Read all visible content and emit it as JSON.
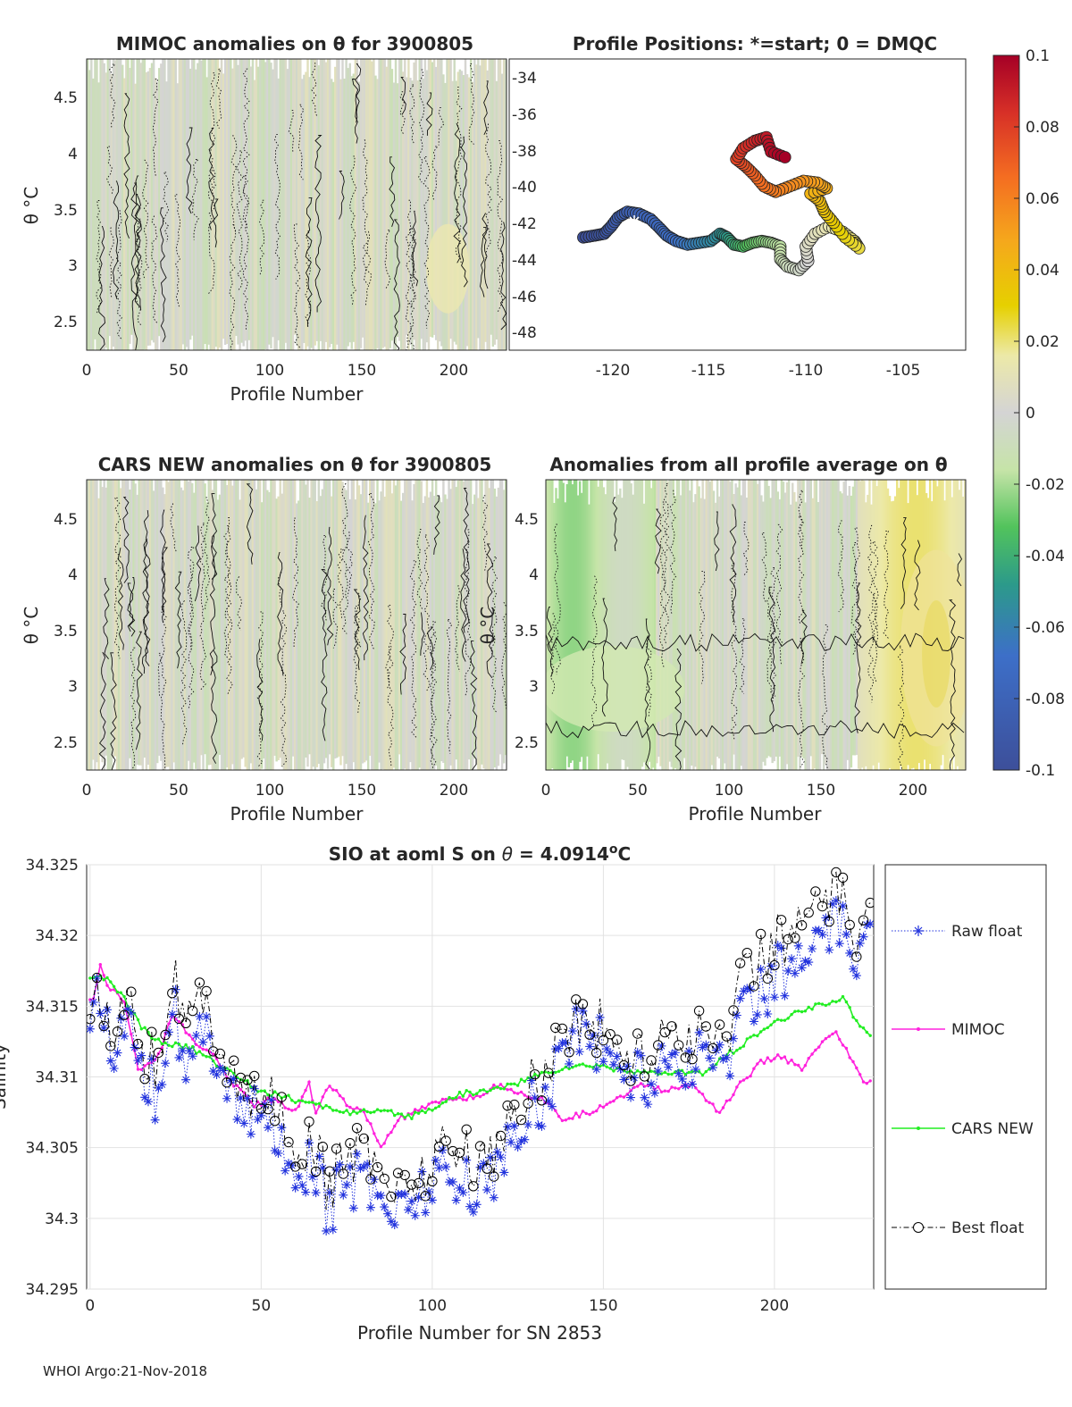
{
  "footer": "WHOI Argo:21-Nov-2018",
  "colors": {
    "raw": "#2233dd",
    "mimoc": "#ff22dd",
    "cars": "#22ee22",
    "best": "#000000",
    "fieldBase": "#d6d6d6"
  },
  "colorbar": {
    "ticks": [
      "0.1",
      "0.08",
      "0.06",
      "0.04",
      "0.02",
      "0",
      "-0.02",
      "-0.04",
      "-0.06",
      "-0.08",
      "-0.1"
    ],
    "values": [
      0.1,
      0.08,
      0.06,
      0.04,
      0.02,
      0,
      -0.02,
      -0.04,
      -0.06,
      -0.08,
      -0.1
    ],
    "range": [
      -0.1,
      0.1
    ]
  },
  "chart_data": [
    {
      "type": "heatmap",
      "title": "MIMOC anomalies on θ  for 3900805",
      "xlabel": "Profile Number",
      "ylabel": "θ °C",
      "xticks": [
        "0",
        "50",
        "100",
        "150",
        "200"
      ],
      "yticks": [
        "4.5",
        "4",
        "3.5",
        "3",
        "2.5"
      ],
      "xlim": [
        0,
        229
      ],
      "ylim": [
        2.25,
        4.85
      ]
    },
    {
      "type": "scatter",
      "title": "Profile Positions: *=start; 0 = DMQC",
      "xticks": [
        "-120",
        "-115",
        "-110",
        "-105"
      ],
      "yticks": [
        "-34",
        "-36",
        "-38",
        "-40",
        "-42",
        "-44",
        "-46",
        "-48"
      ],
      "xlim": [
        -122.3,
        -102.6
      ],
      "ylim": [
        -49,
        -33
      ],
      "start": [
        -118.4,
        -42.0
      ],
      "track": [
        [
          -119.1,
          -42.8
        ],
        [
          -118.6,
          -42.7
        ],
        [
          -118.2,
          -42.6
        ],
        [
          -117.9,
          -42.2
        ],
        [
          -117.6,
          -41.7
        ],
        [
          -117.2,
          -41.4
        ],
        [
          -116.7,
          -41.5
        ],
        [
          -116.2,
          -41.8
        ],
        [
          -115.8,
          -42.3
        ],
        [
          -115.5,
          -42.7
        ],
        [
          -115.1,
          -43.0
        ],
        [
          -114.6,
          -43.2
        ],
        [
          -114.1,
          -43.1
        ],
        [
          -113.6,
          -43.0
        ],
        [
          -113.2,
          -42.6
        ],
        [
          -112.9,
          -42.8
        ],
        [
          -112.6,
          -43.2
        ],
        [
          -112.2,
          -43.3
        ],
        [
          -111.8,
          -43.1
        ],
        [
          -111.4,
          -43.0
        ],
        [
          -111.0,
          -43.1
        ],
        [
          -110.6,
          -43.3
        ],
        [
          -110.6,
          -44.0
        ],
        [
          -110.3,
          -44.4
        ],
        [
          -109.8,
          -44.6
        ],
        [
          -109.4,
          -44.1
        ],
        [
          -109.5,
          -43.3
        ],
        [
          -109.1,
          -42.6
        ],
        [
          -108.5,
          -42.2
        ],
        [
          -107.9,
          -42.5
        ],
        [
          -107.4,
          -43.0
        ],
        [
          -107.2,
          -43.4
        ],
        [
          -107.8,
          -42.8
        ],
        [
          -108.3,
          -42.0
        ],
        [
          -108.7,
          -41.4
        ],
        [
          -108.9,
          -40.8
        ],
        [
          -109.3,
          -40.4
        ],
        [
          -108.6,
          -40.1
        ],
        [
          -109.0,
          -39.8
        ],
        [
          -109.6,
          -39.7
        ],
        [
          -110.2,
          -40.0
        ],
        [
          -110.8,
          -40.3
        ],
        [
          -111.3,
          -40.0
        ],
        [
          -111.7,
          -39.4
        ],
        [
          -112.1,
          -38.9
        ],
        [
          -112.5,
          -38.5
        ],
        [
          -112.2,
          -37.9
        ],
        [
          -111.7,
          -37.5
        ],
        [
          -111.2,
          -37.3
        ],
        [
          -111.0,
          -38.1
        ],
        [
          -110.4,
          -38.4
        ]
      ]
    },
    {
      "type": "heatmap",
      "title": "CARS NEW anomalies on θ for 3900805",
      "xlabel": "Profile Number",
      "ylabel": "θ °C",
      "xticks": [
        "0",
        "50",
        "100",
        "150",
        "200"
      ],
      "yticks": [
        "4.5",
        "4",
        "3.5",
        "3",
        "2.5"
      ],
      "xlim": [
        0,
        229
      ],
      "ylim": [
        2.25,
        4.85
      ]
    },
    {
      "type": "heatmap",
      "title": "Anomalies from all profile average on θ",
      "xlabel": "Profile Number",
      "ylabel": "θ °C",
      "xticks": [
        "0",
        "50",
        "100",
        "150",
        "200"
      ],
      "yticks": [
        "4.5",
        "4",
        "3.5",
        "3",
        "2.5"
      ],
      "xlim": [
        0,
        229
      ],
      "ylim": [
        2.25,
        4.85
      ]
    },
    {
      "type": "line",
      "title": "SIO at aoml S on θ = 4.0914°C",
      "xlabel": "Profile Number for SN 2853",
      "ylabel": "Salinity",
      "xticks": [
        "0",
        "50",
        "100",
        "150",
        "200"
      ],
      "yticks": [
        "34.325",
        "34.32",
        "34.315",
        "34.31",
        "34.305",
        "34.3",
        "34.295"
      ],
      "xlim": [
        -1,
        229
      ],
      "ylim": [
        34.295,
        34.325
      ],
      "legend_position": "outside-right",
      "series": [
        {
          "name": "Raw float",
          "style": "dotted, asterisk markers",
          "anchors": [
            [
              0,
              34.3121
            ],
            [
              3,
              34.3165
            ],
            [
              7,
              34.311
            ],
            [
              12,
              34.316
            ],
            [
              15,
              34.3105
            ],
            [
              20,
              34.3085
            ],
            [
              24,
              34.3165
            ],
            [
              28,
              34.3095
            ],
            [
              33,
              34.3135
            ],
            [
              38,
              34.3115
            ],
            [
              45,
              34.307
            ],
            [
              50,
              34.3075
            ],
            [
              55,
              34.3065
            ],
            [
              58,
              34.302
            ],
            [
              62,
              34.3035
            ],
            [
              66,
              34.303
            ],
            [
              70,
              34.3005
            ],
            [
              74,
              34.3025
            ],
            [
              80,
              34.303
            ],
            [
              86,
              34.3015
            ],
            [
              90,
              34.3005
            ],
            [
              96,
              34.302
            ],
            [
              102,
              34.3035
            ],
            [
              108,
              34.302
            ],
            [
              114,
              34.3025
            ],
            [
              118,
              34.3035
            ],
            [
              124,
              34.3055
            ],
            [
              128,
              34.308
            ],
            [
              134,
              34.3085
            ],
            [
              138,
              34.3125
            ],
            [
              144,
              34.3135
            ],
            [
              150,
              34.312
            ],
            [
              156,
              34.3105
            ],
            [
              162,
              34.3095
            ],
            [
              168,
              34.3115
            ],
            [
              174,
              34.311
            ],
            [
              180,
              34.3115
            ],
            [
              186,
              34.3115
            ],
            [
              190,
              34.314
            ],
            [
              194,
              34.316
            ],
            [
              198,
              34.3165
            ],
            [
              202,
              34.3175
            ],
            [
              206,
              34.318
            ],
            [
              210,
              34.3185
            ],
            [
              214,
              34.3195
            ],
            [
              218,
              34.3205
            ],
            [
              222,
              34.3195
            ],
            [
              225,
              34.3185
            ],
            [
              228,
              34.319
            ]
          ]
        },
        {
          "name": "MIMOC",
          "style": "solid, point markers",
          "anchors": [
            [
              1,
              34.3155
            ],
            [
              3,
              34.318
            ],
            [
              5,
              34.3165
            ],
            [
              10,
              34.3155
            ],
            [
              14,
              34.3105
            ],
            [
              20,
              34.3115
            ],
            [
              24,
              34.3145
            ],
            [
              30,
              34.3125
            ],
            [
              36,
              34.3115
            ],
            [
              42,
              34.3095
            ],
            [
              48,
              34.308
            ],
            [
              54,
              34.3085
            ],
            [
              60,
              34.3075
            ],
            [
              64,
              34.3095
            ],
            [
              66,
              34.3075
            ],
            [
              70,
              34.3095
            ],
            [
              75,
              34.308
            ],
            [
              80,
              34.3075
            ],
            [
              85,
              34.305
            ],
            [
              90,
              34.307
            ],
            [
              95,
              34.3075
            ],
            [
              100,
              34.308
            ],
            [
              106,
              34.3085
            ],
            [
              112,
              34.3085
            ],
            [
              120,
              34.3095
            ],
            [
              126,
              34.3088
            ],
            [
              132,
              34.3085
            ],
            [
              138,
              34.307
            ],
            [
              146,
              34.3075
            ],
            [
              154,
              34.3085
            ],
            [
              162,
              34.3095
            ],
            [
              168,
              34.309
            ],
            [
              176,
              34.3095
            ],
            [
              184,
              34.3075
            ],
            [
              190,
              34.3095
            ],
            [
              196,
              34.311
            ],
            [
              202,
              34.3115
            ],
            [
              208,
              34.3105
            ],
            [
              214,
              34.3125
            ],
            [
              218,
              34.313
            ],
            [
              222,
              34.3115
            ],
            [
              226,
              34.3095
            ],
            [
              228,
              34.3098
            ]
          ]
        },
        {
          "name": "CARS NEW",
          "style": "solid, point markers",
          "anchors": [
            [
              1,
              34.317
            ],
            [
              5,
              34.317
            ],
            [
              10,
              34.3155
            ],
            [
              15,
              34.3135
            ],
            [
              20,
              34.3125
            ],
            [
              30,
              34.312
            ],
            [
              40,
              34.3105
            ],
            [
              50,
              34.309
            ],
            [
              58,
              34.3085
            ],
            [
              66,
              34.308
            ],
            [
              76,
              34.3075
            ],
            [
              86,
              34.3075
            ],
            [
              94,
              34.3072
            ],
            [
              100,
              34.3078
            ],
            [
              108,
              34.3088
            ],
            [
              116,
              34.309
            ],
            [
              124,
              34.3095
            ],
            [
              132,
              34.3102
            ],
            [
              140,
              34.3107
            ],
            [
              148,
              34.3108
            ],
            [
              156,
              34.3105
            ],
            [
              164,
              34.3102
            ],
            [
              172,
              34.3103
            ],
            [
              180,
              34.3103
            ],
            [
              186,
              34.3115
            ],
            [
              192,
              34.3125
            ],
            [
              198,
              34.3135
            ],
            [
              206,
              34.3145
            ],
            [
              214,
              34.3152
            ],
            [
              220,
              34.3155
            ],
            [
              224,
              34.314
            ],
            [
              228,
              34.313
            ]
          ]
        },
        {
          "name": "Best float",
          "style": "dash-dot, circle markers",
          "anchors": [
            [
              0,
              34.3128
            ],
            [
              3,
              34.3162
            ],
            [
              7,
              34.3125
            ],
            [
              12,
              34.3175
            ],
            [
              15,
              34.3115
            ],
            [
              20,
              34.311
            ],
            [
              24,
              34.318
            ],
            [
              28,
              34.3135
            ],
            [
              33,
              34.3155
            ],
            [
              38,
              34.3125
            ],
            [
              45,
              34.3085
            ],
            [
              50,
              34.308
            ],
            [
              55,
              34.309
            ],
            [
              58,
              34.3035
            ],
            [
              62,
              34.305
            ],
            [
              66,
              34.3045
            ],
            [
              70,
              34.302
            ],
            [
              74,
              34.304
            ],
            [
              80,
              34.305
            ],
            [
              86,
              34.3035
            ],
            [
              90,
              34.302
            ],
            [
              96,
              34.303
            ],
            [
              102,
              34.305
            ],
            [
              108,
              34.3045
            ],
            [
              114,
              34.304
            ],
            [
              118,
              34.305
            ],
            [
              124,
              34.307
            ],
            [
              128,
              34.3095
            ],
            [
              134,
              34.3105
            ],
            [
              138,
              34.3135
            ],
            [
              144,
              34.314
            ],
            [
              150,
              34.3135
            ],
            [
              156,
              34.3115
            ],
            [
              162,
              34.311
            ],
            [
              168,
              34.3135
            ],
            [
              174,
              34.313
            ],
            [
              180,
              34.3128
            ],
            [
              186,
              34.313
            ],
            [
              190,
              34.3165
            ],
            [
              194,
              34.3185
            ],
            [
              198,
              34.319
            ],
            [
              202,
              34.3195
            ],
            [
              206,
              34.3205
            ],
            [
              210,
              34.322
            ],
            [
              214,
              34.3215
            ],
            [
              218,
              34.3225
            ],
            [
              222,
              34.3215
            ],
            [
              225,
              34.3195
            ],
            [
              228,
              34.3205
            ]
          ]
        }
      ]
    }
  ]
}
